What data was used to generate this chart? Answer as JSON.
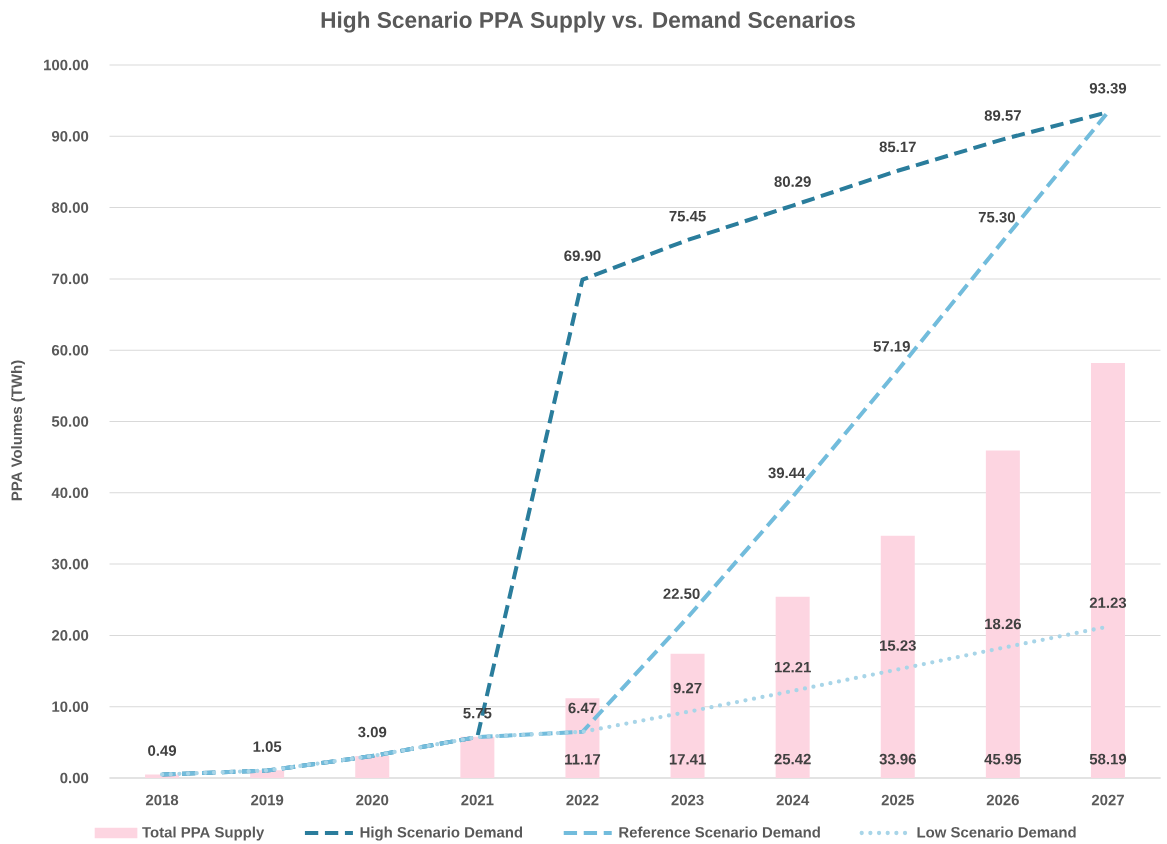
{
  "chart_data": {
    "type": "bar",
    "title": "High Scenario PPA Supply vs. Demand Scenarios",
    "ylabel": "PPA Volumes (TWh)",
    "categories": [
      "2018",
      "2019",
      "2020",
      "2021",
      "2022",
      "2023",
      "2024",
      "2025",
      "2026",
      "2027"
    ],
    "series": [
      {
        "name": "Total PPA Supply",
        "color": "#fdd5e1",
        "values": [
          0.5,
          1.1,
          3.1,
          5.8,
          11.17,
          17.41,
          25.42,
          33.96,
          45.95,
          58.19
        ],
        "value_labels": [
          null,
          null,
          null,
          null,
          "11.17",
          "17.41",
          "25.42",
          "33.96",
          "45.95",
          "58.19"
        ]
      },
      {
        "name": "High Scenario Demand",
        "type": "line",
        "color": "#2a7d9c",
        "line_style": "dashed",
        "values": [
          0.49,
          1.05,
          3.09,
          5.75,
          69.9,
          75.45,
          80.29,
          85.17,
          89.57,
          93.39
        ],
        "value_labels": [
          null,
          null,
          null,
          null,
          "69.90",
          "75.45",
          "80.29",
          "85.17",
          "89.57",
          "93.39"
        ]
      },
      {
        "name": "Reference Scenario Demand",
        "type": "line",
        "color": "#72bcdc",
        "line_style": "dashed",
        "values": [
          0.49,
          1.05,
          3.09,
          5.75,
          6.47,
          22.5,
          39.44,
          57.19,
          75.3,
          93.39
        ],
        "value_labels": [
          null,
          null,
          null,
          null,
          null,
          "22.50",
          "39.44",
          "57.19",
          "75.30",
          null
        ]
      },
      {
        "name": "Low Scenario Demand",
        "type": "line",
        "color": "#a8d5e8",
        "line_style": "dotted",
        "values": [
          0.49,
          1.05,
          3.09,
          5.75,
          6.47,
          9.27,
          12.21,
          15.23,
          18.26,
          21.23
        ],
        "value_labels": [
          "0.49",
          "1.05",
          "3.09",
          "5.75",
          "6.47",
          "9.27",
          "12.21",
          "15.23",
          "18.26",
          "21.23"
        ]
      }
    ],
    "ylim": [
      0,
      100
    ],
    "yticks": [
      {
        "value": 0,
        "label": "0.00"
      },
      {
        "value": 10,
        "label": "10.00"
      },
      {
        "value": 20,
        "label": "20.00"
      },
      {
        "value": 30,
        "label": "30.00"
      },
      {
        "value": 40,
        "label": "40.00"
      },
      {
        "value": 50,
        "label": "50.00"
      },
      {
        "value": 60,
        "label": "60.00"
      },
      {
        "value": 70,
        "label": "70.00"
      },
      {
        "value": 80,
        "label": "80.00"
      },
      {
        "value": 90,
        "label": "90.00"
      },
      {
        "value": 100,
        "label": "100.00"
      }
    ],
    "grid": "y",
    "legend": "bottom",
    "marker": "none"
  }
}
